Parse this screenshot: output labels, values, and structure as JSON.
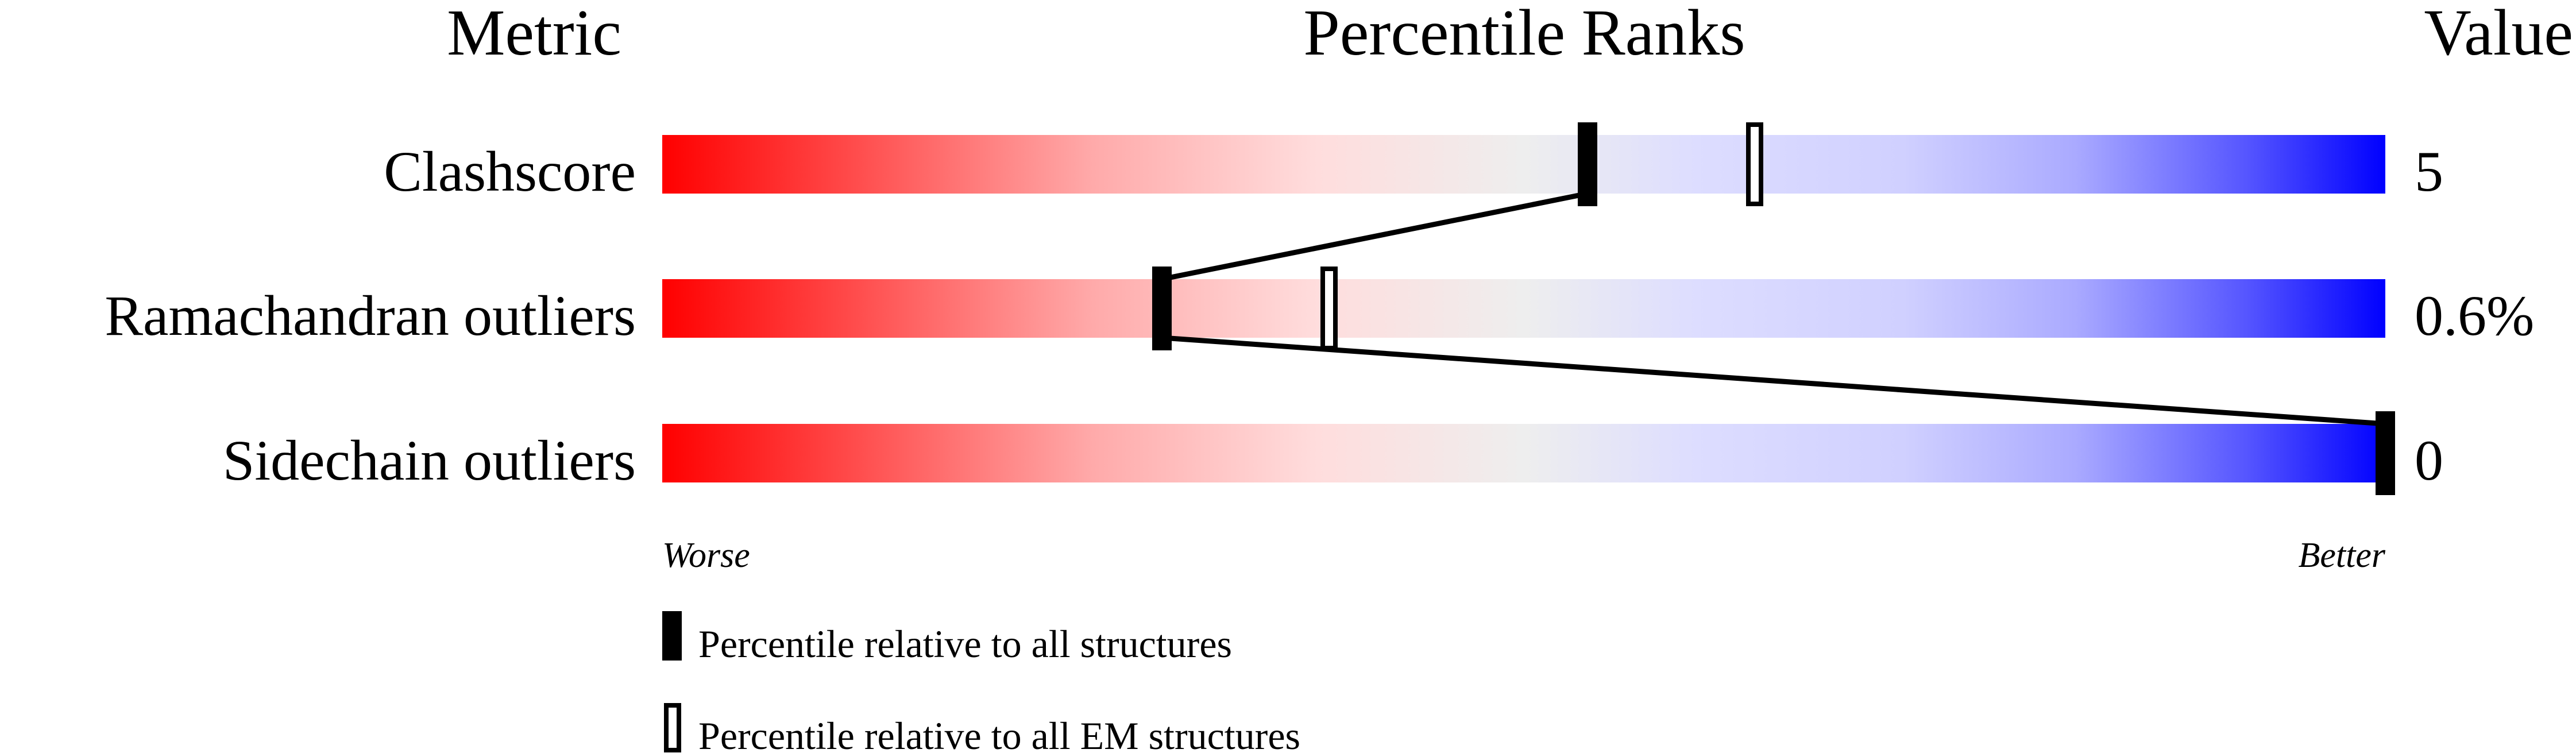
{
  "chart_data": {
    "type": "percentile-slider",
    "headers": {
      "metric": "Metric",
      "ranks": "Percentile Ranks",
      "value": "Value"
    },
    "xlim": [
      0,
      100
    ],
    "axis_left_label": "Worse",
    "axis_right_label": "Better",
    "gradient_colors": [
      "#ff0000",
      "#eeeeee",
      "#0000ff"
    ],
    "rows": [
      {
        "metric": "Clashscore",
        "value": "5",
        "percentile_all": 53.7,
        "percentile_em": 63.4
      },
      {
        "metric": "Ramachandran outliers",
        "value": "0.6%",
        "percentile_all": 29.0,
        "percentile_em": 38.7
      },
      {
        "metric": "Sidechain outliers",
        "value": "0",
        "percentile_all": 100,
        "percentile_em": null
      }
    ],
    "legend": [
      {
        "marker": "filled",
        "label": "Percentile relative to all structures"
      },
      {
        "marker": "hollow",
        "label": "Percentile relative to all EM structures"
      }
    ]
  }
}
